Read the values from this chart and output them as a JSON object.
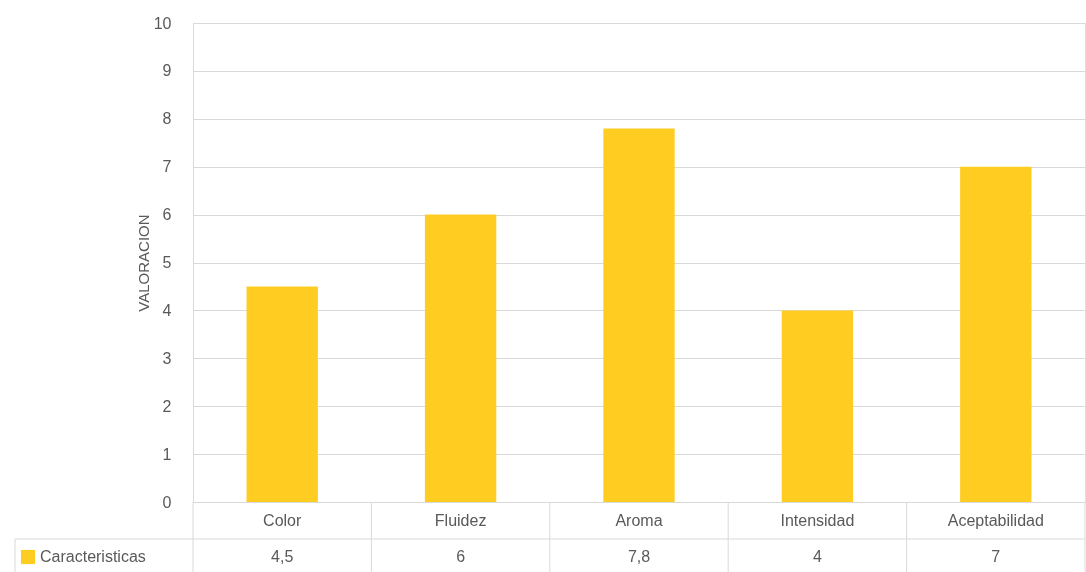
{
  "chart_data": {
    "type": "bar",
    "ylabel": "VALORACION",
    "categories": [
      "Color",
      "Fluidez",
      "Aroma",
      "Intensidad",
      "Aceptabilidad"
    ],
    "series": [
      {
        "name": "Caracteristicas",
        "color": "#ffcd22",
        "values": [
          4.5,
          6,
          7.8,
          4,
          7
        ],
        "value_labels": [
          "4,5",
          "6",
          "7,8",
          "4",
          "7"
        ]
      }
    ],
    "ylim": [
      0,
      10
    ],
    "yticks": [
      0,
      1,
      2,
      3,
      4,
      5,
      6,
      7,
      8,
      9,
      10
    ],
    "grid": "y",
    "legend": "bottom"
  }
}
